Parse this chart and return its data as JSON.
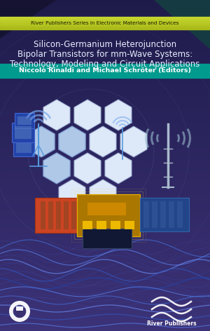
{
  "fig_width": 3.0,
  "fig_height": 4.72,
  "dpi": 100,
  "bg_color_top": "#1e1b4a",
  "bg_color_bottom": "#3a3070",
  "series_bar_color_top": "#c8d830",
  "series_bar_color_bot": "#8aaa20",
  "series_bar_text": "River Publishers Series in Electronic Materials and Devices",
  "series_bar_text_color": "#1a1a00",
  "title_line1": "Silicon-Germanium Heterojunction",
  "title_line2": "Bipolar Transistors for mm-Wave Systems:",
  "title_line3": "Technology, Modeling and Circuit Applications",
  "title_color": "#e8eeff",
  "title_fontsize": 8.5,
  "authors_bar_color": "#009b8e",
  "authors_text": "Niccolò Rinaldi and Michael Schröter (Editors)",
  "authors_text_color": "#ffffff",
  "authors_fontsize": 6.8,
  "hex_face": "#ccd8f0",
  "hex_edge": "#8899cc",
  "hex_face2": "#a0b8e8",
  "wave_color": "#4466cc",
  "publisher_text": "River Publishers"
}
